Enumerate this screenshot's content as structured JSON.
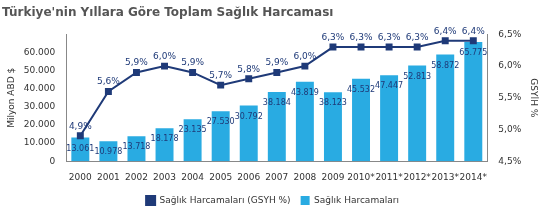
{
  "chart_data": {
    "type": "bar",
    "title": "Türkiye'nin Yıllara Göre Toplam Sağlık Harcaması",
    "categories": [
      "2000",
      "2001",
      "2002",
      "2003",
      "2004",
      "2005",
      "2006",
      "2007",
      "2008",
      "2009",
      "2010*",
      "2011*",
      "2012*",
      "2013*",
      "2014*"
    ],
    "y_label": "Milyon ABD $",
    "y2_label": "GSYİH %",
    "ylim": [
      0,
      70000
    ],
    "yticks": [
      0,
      {
        "value": 10000,
        "label": "10.000"
      },
      {
        "value": 20000,
        "label": "20.000"
      },
      {
        "value": 30000,
        "label": "30.000"
      },
      {
        "value": 40000,
        "label": "40.000"
      },
      {
        "value": 50000,
        "label": "50.000"
      },
      {
        "value": 60000,
        "label": "60.000"
      }
    ],
    "y2lim": [
      4.5,
      6.5
    ],
    "y2ticks": [
      {
        "value": 4.5,
        "label": "4,5%"
      },
      {
        "value": 5.0,
        "label": "5,0%"
      },
      {
        "value": 5.5,
        "label": "5,5%"
      },
      {
        "value": 6.0,
        "label": "6,0%"
      },
      {
        "value": 6.5,
        "label": "6,5%"
      }
    ],
    "grid": false,
    "legend": "bottom",
    "data_labels": true,
    "series": [
      {
        "name": "Sağlık Harcamaları",
        "type": "bar",
        "color": "#29abe2",
        "values": [
          13061,
          10978,
          13718,
          18178,
          23135,
          27530,
          30792,
          38184,
          43819,
          38123,
          45532,
          47447,
          52813,
          58872,
          65775
        ],
        "value_labels": [
          "13.061",
          "10.978",
          "13.718",
          "18.178",
          "23.135",
          "27.530",
          "30.792",
          "38.184",
          "43.819",
          "38.123",
          "45.532",
          "47.447",
          "52.813",
          "58.872",
          "65.775"
        ]
      },
      {
        "name": "Sağlık Harcamaları (GSYH %)",
        "type": "line",
        "axis": "y2",
        "color": "#1f3a78",
        "marker": "square",
        "line_style": "solid",
        "values": [
          4.9,
          5.6,
          5.9,
          6.0,
          5.9,
          5.7,
          5.8,
          5.9,
          6.0,
          6.3,
          6.3,
          6.3,
          6.3,
          6.4,
          6.4
        ],
        "value_labels": [
          "4,9%",
          "5,6%",
          "5,9%",
          "6,0%",
          "5,9%",
          "5,7%",
          "5,8%",
          "5,9%",
          "6,0%",
          "6,3%",
          "6,3%",
          "6,3%",
          "6,3%",
          "6,4%",
          "6,4%"
        ]
      }
    ]
  }
}
